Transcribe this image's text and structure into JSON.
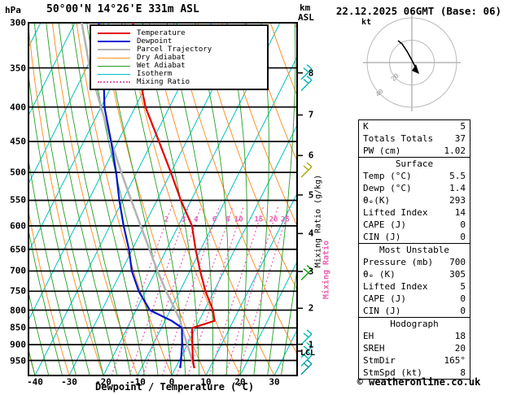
{
  "header": {
    "pressure_unit": "hPa",
    "station_title": "50°00'N 14°26'E 331m ASL",
    "datetime_title": "22.12.2025 06GMT (Base: 06)",
    "altitude_unit_line1": "km",
    "altitude_unit_line2": "ASL"
  },
  "legend": {
    "items": [
      {
        "label": "Temperature",
        "color": "#e60000",
        "style": "solid",
        "width": 2
      },
      {
        "label": "Dewpoint",
        "color": "#0014d2",
        "style": "solid",
        "width": 2
      },
      {
        "label": "Parcel Trajectory",
        "color": "#b4b4b4",
        "style": "solid",
        "width": 2
      },
      {
        "label": "Dry Adiabat",
        "color": "#ff9228",
        "style": "solid",
        "width": 1
      },
      {
        "label": "Wet Adiabat",
        "color": "#22a022",
        "style": "solid",
        "width": 1
      },
      {
        "label": "Isotherm",
        "color": "#00c3c3",
        "style": "solid",
        "width": 1
      },
      {
        "label": "Mixing Ratio",
        "color": "#e860b0",
        "style": "dotted",
        "width": 2
      }
    ]
  },
  "axes": {
    "pressure_ticks": [
      300,
      350,
      400,
      450,
      500,
      550,
      600,
      650,
      700,
      750,
      800,
      850,
      900,
      950
    ],
    "temperature_ticks": [
      -40,
      -30,
      -20,
      -10,
      0,
      10,
      20,
      30
    ],
    "km_ticks": [
      8,
      7,
      6,
      5,
      4,
      3,
      2,
      1
    ],
    "mixing_ratio_ticks": [
      2,
      3,
      4,
      6,
      8,
      10,
      15,
      20,
      25
    ],
    "bottom_label": "Dewpoint / Temperature (°C)",
    "mixing_ratio_label": "Mixing Ratio (g/kg)",
    "mixing_ratio_inline": "Mixing Ratio",
    "lcl_label": "LCL"
  },
  "hodograph": {
    "unit": "kt",
    "ring_labels": [
      "20",
      "40"
    ]
  },
  "table": {
    "sections": [
      {
        "header": null,
        "rows": [
          [
            "K",
            "5"
          ],
          [
            "Totals Totals",
            "37"
          ],
          [
            "PW (cm)",
            "1.02"
          ]
        ]
      },
      {
        "header": "Surface",
        "rows": [
          [
            "Temp (°C)",
            "5.5"
          ],
          [
            "Dewp (°C)",
            "1.4"
          ],
          [
            "θₑ(K)",
            "293"
          ],
          [
            "Lifted Index",
            "14"
          ],
          [
            "CAPE (J)",
            "0"
          ],
          [
            "CIN (J)",
            "0"
          ]
        ]
      },
      {
        "header": "Most Unstable",
        "rows": [
          [
            "Pressure (mb)",
            "700"
          ],
          [
            "θₑ (K)",
            "305"
          ],
          [
            "Lifted Index",
            "5"
          ],
          [
            "CAPE (J)",
            "0"
          ],
          [
            "CIN (J)",
            "0"
          ]
        ]
      },
      {
        "header": "Hodograph",
        "rows": [
          [
            "EH",
            "18"
          ],
          [
            "SREH",
            "20"
          ],
          [
            "StmDir",
            "165°"
          ],
          [
            "StmSpd (kt)",
            "8"
          ]
        ]
      }
    ]
  },
  "footer": {
    "copyright": "© weatheronline.co.uk"
  },
  "colors": {
    "isotherm": "#00c3c3",
    "dry_adiabat": "#ff9228",
    "wet_adiabat": "#22a022",
    "mixing_ratio": "#e860b0",
    "grid": "#000000"
  },
  "chart_data": {
    "type": "line",
    "title": "Skew-T log-P sounding, 50°00'N 14°26'E 331m ASL, 22.12.2025 06GMT (Base: 06)",
    "xlabel": "Dewpoint / Temperature (°C)",
    "ylabel": "Pressure (hPa)",
    "x_range": [
      -40,
      35
    ],
    "p_range": [
      300,
      1000
    ],
    "p_scale": "log",
    "skew": true,
    "grid": "horizontal pressure lines, skewed isotherms, dry/wet adiabats, mixing-ratio lines",
    "legend_position": "top-left-inset",
    "pressure_levels": [
      975,
      950,
      900,
      850,
      830,
      800,
      750,
      700,
      650,
      600,
      550,
      500,
      450,
      400,
      350,
      300
    ],
    "series": [
      {
        "name": "Temperature",
        "color": "#e60000",
        "values_c": [
          5.5,
          4,
          1.5,
          -1,
          4.5,
          2.5,
          -2.5,
          -7,
          -11.5,
          -16,
          -23,
          -30,
          -38,
          -47,
          -55,
          -63
        ]
      },
      {
        "name": "Dewpoint",
        "color": "#0014d2",
        "values_c": [
          1.4,
          0.5,
          -1.5,
          -4,
          -8,
          -16,
          -22,
          -27,
          -31,
          -36,
          -41,
          -46,
          -52,
          -59,
          -65,
          -73
        ]
      },
      {
        "name": "Parcel Trajectory",
        "color": "#b4b4b4",
        "values_c": [
          5.5,
          3.8,
          0,
          -4,
          -5.5,
          -8.5,
          -14,
          -19.5,
          -25,
          -31,
          -37.5,
          -44.5,
          -52,
          -60,
          -69,
          -78
        ]
      }
    ],
    "lcl_pressure": 920,
    "wind_barbs": [
      {
        "pressure": 358,
        "color": "#00b8b8"
      },
      {
        "pressure": 372,
        "color": "#00b8b8"
      },
      {
        "pressure": 500,
        "color": "#a8a800"
      },
      {
        "pressure": 710,
        "color": "#00a800"
      },
      {
        "pressure": 885,
        "color": "#00b8b8"
      },
      {
        "pressure": 925,
        "color": "#00b8b8"
      },
      {
        "pressure": 952,
        "color": "#00b8b8"
      },
      {
        "pressure": 980,
        "color": "#009898"
      }
    ]
  }
}
